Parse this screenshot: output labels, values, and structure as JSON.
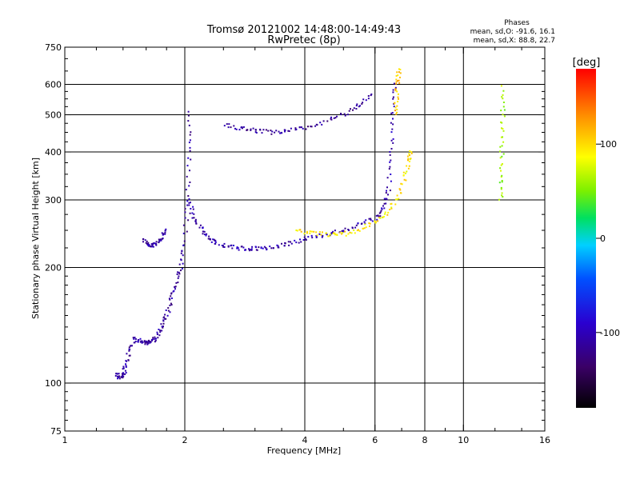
{
  "title_line1": "Tromsø 20121002 14:48:00-14:49:43",
  "title_line2": "RwPretec (8p)",
  "phase_info": {
    "heading": "Phases",
    "line_o": "mean, sd,O: -91.6, 16.1",
    "line_x": "mean, sd,X: 88.8, 22.7"
  },
  "colorbar": {
    "unit_label": "[deg]",
    "tick_labels": [
      "100",
      "0",
      "-100"
    ],
    "tick_values": [
      100,
      0,
      -100
    ],
    "range": [
      -180,
      180
    ],
    "colormap": "rainbow (black-purple-blue-cyan-green-yellow-orange-red)"
  },
  "chart_data": {
    "type": "scatter",
    "xlabel": "Frequency [MHz]",
    "ylabel": "Stationary phase Virtual Height [km]",
    "xscale": "log",
    "yscale": "log",
    "xlim": [
      1,
      16
    ],
    "ylim": [
      75,
      750
    ],
    "x_ticks": [
      "1",
      "2",
      "4",
      "6",
      "8",
      "10",
      "16"
    ],
    "x_tick_values": [
      1,
      2,
      4,
      6,
      8,
      10,
      16
    ],
    "y_ticks": [
      "750",
      "600",
      "500",
      "400",
      "300",
      "200",
      "100",
      "75"
    ],
    "y_tick_values": [
      750,
      600,
      500,
      400,
      300,
      200,
      100,
      75
    ],
    "grid_x": [
      2,
      4,
      6,
      8,
      10
    ],
    "grid_y": [
      600,
      500,
      400,
      300,
      200,
      100
    ],
    "color_encodes": "phase [deg]",
    "traces": [
      {
        "points": [
          [
            1.35,
            106
          ],
          [
            1.38,
            103
          ],
          [
            1.4,
            105
          ],
          [
            1.42,
            110
          ],
          [
            1.45,
            120
          ],
          [
            1.5,
            130
          ],
          [
            1.55,
            129
          ],
          [
            1.6,
            127
          ],
          [
            1.65,
            128
          ],
          [
            1.7,
            132
          ],
          [
            1.75,
            140
          ],
          [
            1.8,
            150
          ],
          [
            1.85,
            165
          ],
          [
            1.9,
            180
          ],
          [
            1.95,
            200
          ],
          [
            2.0,
            230
          ],
          [
            2.03,
            300
          ],
          [
            2.05,
            400
          ],
          [
            2.06,
            520
          ]
        ],
        "phase": -110
      },
      {
        "points": [
          [
            1.58,
            235
          ],
          [
            1.62,
            230
          ],
          [
            1.66,
            228
          ],
          [
            1.7,
            230
          ],
          [
            1.75,
            240
          ],
          [
            1.8,
            252
          ]
        ],
        "phase": -110
      },
      {
        "points": [
          [
            2.05,
            300
          ],
          [
            2.1,
            270
          ],
          [
            2.2,
            252
          ],
          [
            2.3,
            240
          ],
          [
            2.4,
            232
          ],
          [
            2.6,
            226
          ],
          [
            2.8,
            224
          ],
          [
            3.0,
            224
          ],
          [
            3.2,
            225
          ],
          [
            3.5,
            228
          ],
          [
            3.8,
            234
          ],
          [
            4.2,
            240
          ],
          [
            4.6,
            245
          ],
          [
            5.0,
            250
          ],
          [
            5.5,
            258
          ],
          [
            6.0,
            268
          ],
          [
            6.3,
            285
          ],
          [
            6.5,
            320
          ],
          [
            6.6,
            400
          ],
          [
            6.65,
            500
          ],
          [
            6.7,
            620
          ]
        ],
        "phase": -105
      },
      {
        "points": [
          [
            3.8,
            250
          ],
          [
            4.2,
            246
          ],
          [
            4.6,
            243
          ],
          [
            5.0,
            244
          ],
          [
            5.5,
            252
          ],
          [
            6.0,
            262
          ],
          [
            6.4,
            275
          ],
          [
            6.8,
            300
          ],
          [
            7.1,
            340
          ],
          [
            7.3,
            380
          ],
          [
            7.4,
            400
          ]
        ],
        "phase": 95
      },
      {
        "points": [
          [
            2.5,
            470
          ],
          [
            2.8,
            460
          ],
          [
            3.0,
            455
          ],
          [
            3.3,
            450
          ],
          [
            3.6,
            452
          ],
          [
            4.0,
            462
          ],
          [
            4.5,
            478
          ],
          [
            5.0,
            500
          ],
          [
            5.5,
            530
          ],
          [
            5.9,
            570
          ]
        ],
        "phase": -115
      },
      {
        "points": [
          [
            6.75,
            500
          ],
          [
            6.8,
            560
          ],
          [
            6.85,
            620
          ],
          [
            6.9,
            660
          ]
        ],
        "phase": 110
      },
      {
        "points": [
          [
            12.4,
            300
          ],
          [
            12.45,
            350
          ],
          [
            12.5,
            420
          ],
          [
            12.55,
            500
          ],
          [
            12.6,
            600
          ]
        ],
        "phase": 60
      }
    ]
  }
}
